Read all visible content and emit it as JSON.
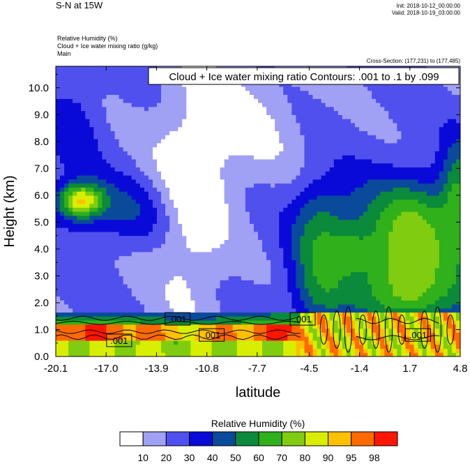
{
  "header": {
    "title": "S-N at 15W",
    "init": "Init: 2018-10-12_00:00:00",
    "valid": "Valid: 2018-10-19_03:00:00",
    "field_lines": [
      "Relative Humidity   (%)",
      "Cloud + Ice water mixing ratio   (g/kg)",
      "Main"
    ],
    "cross_section": "Cross-Section: (177,231) to (177,485)"
  },
  "chart_data": {
    "type": "heatmap",
    "contour_title": "Cloud + Ice water mixing ratio Contours: .001 to .1 by .099",
    "xlabel": "latitude",
    "ylabel": "Height (km)",
    "xlim": [
      -20.1,
      4.8
    ],
    "ylim": [
      0.0,
      10.8
    ],
    "xticks": [
      -20.1,
      -17.0,
      -13.9,
      -10.8,
      -7.7,
      -4.5,
      -1.4,
      1.7,
      4.8
    ],
    "xtick_labels": [
      "-20.1",
      "-17.0",
      "-13.9",
      "-10.8",
      "-7.7",
      "-4.5",
      "-1.4",
      "1.7",
      "4.8"
    ],
    "yticks": [
      0.0,
      1.0,
      2.0,
      3.0,
      4.0,
      5.0,
      6.0,
      7.0,
      8.0,
      9.0,
      10.0
    ],
    "ytick_labels": [
      "0.0",
      "1.0",
      "2.0",
      "3.0",
      "4.0",
      "5.0",
      "6.0",
      "7.0",
      "8.0",
      "9.0",
      "10.0"
    ],
    "colorbar": {
      "title": "Relative Humidity  (%)",
      "levels": [
        "10",
        "20",
        "30",
        "40",
        "50",
        "60",
        "70",
        "80",
        "90",
        "95",
        "98"
      ],
      "colors": [
        "#ffffff",
        "#a0a0f5",
        "#5050ee",
        "#0a0ad8",
        "#0a4a9a",
        "#0a8a3a",
        "#30b01a",
        "#80cc10",
        "#d8ee00",
        "#ffc000",
        "#ff6a00",
        "#ff1500"
      ]
    },
    "contour_labels": [
      {
        "text": ".001",
        "x": -16.2,
        "y": 0.6
      },
      {
        "text": ".001",
        "x": -12.6,
        "y": 1.4
      },
      {
        "text": ".001",
        "x": -10.5,
        "y": 0.8
      },
      {
        "text": ".001",
        "x": -4.9,
        "y": 1.4
      },
      {
        "text": ".001",
        "x": 2.2,
        "y": 0.8
      }
    ]
  }
}
